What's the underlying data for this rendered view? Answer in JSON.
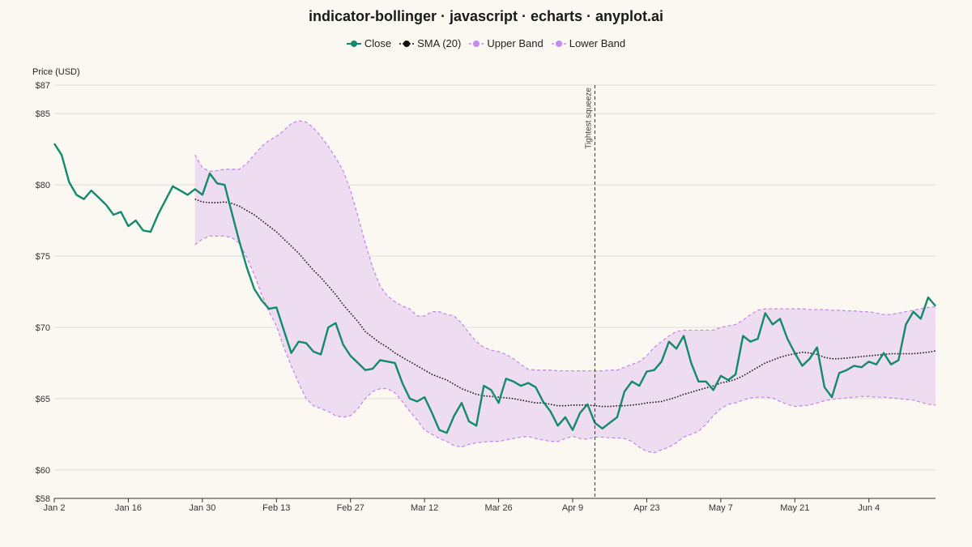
{
  "chart_data": {
    "type": "line",
    "title": "indicator-bollinger · javascript · echarts · anyplot.ai",
    "ylabel": "Price (USD)",
    "xlabel": "",
    "ylim": [
      58,
      87
    ],
    "yticks": [
      58,
      60,
      65,
      70,
      75,
      80,
      85,
      87
    ],
    "ytick_prefix": "$",
    "x_tick_labels": [
      "Jan 2",
      "Jan 16",
      "Jan 30",
      "Feb 13",
      "Feb 27",
      "Mar 12",
      "Mar 26",
      "Apr 9",
      "Apr 23",
      "May 7",
      "May 21",
      "Jun 4"
    ],
    "x_tick_indices": [
      0,
      10,
      20,
      30,
      40,
      50,
      60,
      70,
      80,
      90,
      100,
      110
    ],
    "n_points": 120,
    "legend_position": "top-center",
    "grid": "horizontal",
    "colors": {
      "close": "#138A6C",
      "sma": "#111111",
      "band": "#C58AF0",
      "band_fill": "#EBD8F0"
    },
    "annotation": {
      "label": "Tightest squeeze",
      "x_index": 73
    },
    "series": [
      {
        "name": "Close",
        "start_index": 0,
        "values": [
          82.9,
          82.1,
          80.2,
          79.3,
          79.0,
          79.6,
          79.1,
          78.6,
          77.9,
          78.1,
          77.1,
          77.5,
          76.8,
          76.7,
          77.9,
          78.9,
          79.9,
          79.6,
          79.3,
          79.7,
          79.3,
          80.8,
          80.1,
          80.0,
          78.0,
          76.0,
          74.2,
          72.7,
          71.9,
          71.3,
          71.4,
          69.8,
          68.2,
          69.0,
          68.9,
          68.3,
          68.1,
          70.0,
          70.3,
          68.8,
          68.0,
          67.5,
          67.0,
          67.1,
          67.7,
          67.6,
          67.5,
          66.1,
          65.0,
          64.8,
          65.1,
          64.0,
          62.8,
          62.6,
          63.8,
          64.7,
          63.4,
          63.1,
          65.9,
          65.6,
          64.7,
          66.4,
          66.2,
          65.9,
          66.1,
          65.8,
          64.8,
          64.1,
          63.1,
          63.7,
          62.8,
          64.0,
          64.6,
          63.3,
          62.9,
          63.3,
          63.7,
          65.5,
          66.2,
          65.9,
          66.9,
          67.0,
          67.6,
          69.0,
          68.5,
          69.4,
          67.5,
          66.2,
          66.2,
          65.6,
          66.6,
          66.3,
          66.7,
          69.4,
          69.0,
          69.2,
          71.0,
          70.2,
          70.6,
          69.2,
          68.2,
          67.3,
          67.8,
          68.6,
          65.8,
          65.1,
          66.8,
          67.0,
          67.3,
          67.2,
          67.6,
          67.4,
          68.2,
          67.4,
          67.7,
          70.2,
          71.1,
          70.6,
          72.1,
          71.5
        ]
      },
      {
        "name": "SMA (20)",
        "start_index": 19,
        "values": [
          79.0,
          78.8,
          78.75,
          78.75,
          78.8,
          78.7,
          78.5,
          78.2,
          77.9,
          77.5,
          77.1,
          76.7,
          76.2,
          75.7,
          75.2,
          74.6,
          74.0,
          73.5,
          72.9,
          72.3,
          71.6,
          71.0,
          70.4,
          69.7,
          69.3,
          68.9,
          68.6,
          68.2,
          67.9,
          67.6,
          67.3,
          67.0,
          66.7,
          66.5,
          66.3,
          66.0,
          65.7,
          65.5,
          65.3,
          65.2,
          65.15,
          65.1,
          65.05,
          65.0,
          64.9,
          64.8,
          64.7,
          64.7,
          64.6,
          64.5,
          64.5,
          64.55,
          64.55,
          64.55,
          64.5,
          64.45,
          64.45,
          64.5,
          64.5,
          64.55,
          64.6,
          64.7,
          64.75,
          64.8,
          64.95,
          65.1,
          65.3,
          65.45,
          65.6,
          65.75,
          65.9,
          66.1,
          66.2,
          66.35,
          66.6,
          66.9,
          67.2,
          67.5,
          67.7,
          67.9,
          68.05,
          68.15,
          68.25,
          68.2,
          68.1,
          67.9,
          67.8,
          67.8,
          67.85,
          67.9,
          67.95,
          68.0,
          68.05,
          68.1,
          68.15,
          68.15,
          68.15,
          68.15,
          68.2,
          68.25,
          68.35
        ]
      },
      {
        "name": "Upper Band",
        "start_index": 19,
        "values": [
          82.1,
          81.2,
          80.95,
          81.0,
          81.1,
          81.1,
          81.1,
          81.5,
          82.1,
          82.7,
          83.1,
          83.4,
          83.8,
          84.3,
          84.5,
          84.4,
          84.0,
          83.4,
          82.7,
          81.9,
          81.0,
          79.6,
          77.8,
          75.9,
          74.2,
          72.9,
          72.2,
          71.8,
          71.5,
          71.3,
          70.8,
          70.8,
          71.1,
          71.1,
          70.9,
          70.8,
          70.3,
          69.6,
          69.0,
          68.6,
          68.4,
          68.3,
          68.1,
          67.8,
          67.4,
          67.05,
          67.0,
          67.0,
          67.0,
          66.95,
          66.95,
          66.95,
          66.95,
          66.95,
          66.95,
          66.95,
          67.0,
          67.0,
          67.2,
          67.4,
          67.6,
          68.0,
          68.6,
          69.0,
          69.4,
          69.7,
          69.8,
          69.8,
          69.8,
          69.8,
          69.8,
          70.0,
          70.1,
          70.2,
          70.5,
          70.9,
          71.2,
          71.3,
          71.3,
          71.3,
          71.3,
          71.3,
          71.3,
          71.25,
          71.25,
          71.25,
          71.2,
          71.2,
          71.15,
          71.15,
          71.1,
          71.1,
          71.0,
          70.9,
          70.9,
          71.0,
          71.1,
          71.2,
          71.3,
          71.4,
          71.45
        ]
      },
      {
        "name": "Lower Band",
        "start_index": 19,
        "values": [
          75.8,
          76.2,
          76.4,
          76.4,
          76.4,
          76.3,
          75.9,
          74.9,
          73.7,
          72.3,
          71.1,
          70.1,
          68.6,
          67.3,
          66.1,
          65.0,
          64.5,
          64.3,
          64.1,
          63.8,
          63.7,
          63.8,
          64.3,
          65.0,
          65.5,
          65.7,
          65.7,
          65.4,
          64.8,
          64.1,
          63.5,
          62.8,
          62.5,
          62.2,
          62.0,
          61.7,
          61.6,
          61.8,
          61.9,
          61.95,
          62.0,
          62.0,
          62.1,
          62.2,
          62.3,
          62.35,
          62.2,
          62.1,
          62.0,
          62.0,
          62.2,
          62.35,
          62.2,
          62.15,
          62.3,
          62.3,
          62.25,
          62.25,
          62.2,
          62.0,
          61.6,
          61.3,
          61.2,
          61.4,
          61.6,
          61.9,
          62.3,
          62.5,
          62.7,
          63.2,
          63.8,
          64.3,
          64.6,
          64.7,
          64.9,
          65.05,
          65.1,
          65.1,
          65.05,
          64.8,
          64.6,
          64.45,
          64.5,
          64.55,
          64.7,
          64.85,
          64.95,
          65.0,
          65.05,
          65.1,
          65.15,
          65.15,
          65.1,
          65.1,
          65.05,
          65.0,
          64.95,
          64.9,
          64.75,
          64.6,
          64.55
        ]
      }
    ]
  }
}
